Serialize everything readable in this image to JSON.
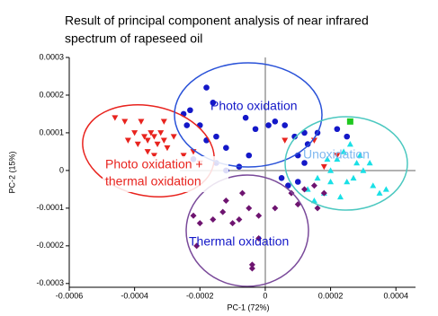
{
  "chart_data": {
    "type": "scatter",
    "title": [
      "Result of principal component analysis of near infrared",
      "spectrum of rapeseed oil"
    ],
    "x_label": "PC-1 (72%)",
    "y_label": "PC-2 (15%)",
    "xlim": [
      -0.0006,
      0.00046
    ],
    "ylim": [
      -0.00031,
      0.0003
    ],
    "xticks": [
      -0.0006,
      -0.0004,
      -0.0002,
      0,
      0.0002,
      0.0004
    ],
    "yticks": [
      -0.0003,
      -0.0002,
      -0.0001,
      0,
      0.0001,
      0.0002,
      0.0003
    ],
    "annotations": [
      "Photo oxidation",
      "Photo oxidation +",
      "thermal oxidation",
      "Unoxidation",
      "Thermal oxidation"
    ],
    "series": [
      {
        "color": "#e8231e",
        "marker": "triangle-down",
        "x": [
          -0.00046,
          -0.00043,
          -0.0004,
          -0.00038,
          -0.00037,
          -0.00036,
          -0.00035,
          -0.00034,
          -0.00033,
          -0.00032,
          -0.00031,
          -0.0003,
          -0.00042,
          -0.00039,
          -0.00036,
          -0.00034,
          -0.00028,
          -0.00025,
          -0.0002,
          -0.00022,
          6e-05,
          0.00015,
          0.00018,
          0.00022,
          -0.00031
        ],
        "values": [
          0.00014,
          0.00013,
          0.0001,
          0.00013,
          9e-05,
          8e-05,
          0.0001,
          9e-05,
          7e-05,
          0.0001,
          8e-05,
          6e-05,
          8e-05,
          7e-05,
          5e-05,
          4e-05,
          9e-05,
          4e-05,
          2e-05,
          5e-05,
          8e-05,
          8e-05,
          1e-05,
          4e-05,
          0.00013
        ]
      },
      {
        "color": "#1418c8",
        "marker": "circle",
        "x": [
          -0.00025,
          -0.00023,
          -0.00024,
          -0.0002,
          -0.00018,
          -0.00015,
          -0.00012,
          -0.00015,
          -0.00012,
          -8e-05,
          -5e-05,
          -0.00018,
          -0.00016,
          -6e-05,
          -3e-05,
          1e-05,
          3e-05,
          6e-05,
          9e-05,
          0.00012,
          0.00013,
          0.0001,
          0.00012,
          0.00016,
          0.00022,
          0.00025,
          5e-05,
          7e-05,
          0.0001,
          -0.00022
        ],
        "values": [
          0.00015,
          0.00016,
          0.00012,
          0.00012,
          8e-05,
          9e-05,
          6e-05,
          2e-05,
          0,
          1e-05,
          4e-05,
          0.00022,
          0.00018,
          0.00014,
          0.00011,
          0.00012,
          0.00013,
          0.00012,
          9e-05,
          0.0001,
          7e-05,
          4e-05,
          2e-05,
          0.0001,
          0.00011,
          9e-05,
          -2e-05,
          -4e-05,
          -3e-05,
          3e-05
        ]
      },
      {
        "color": "#19e0e6",
        "marker": "triangle-up",
        "x": [
          0.00013,
          0.00016,
          0.00018,
          0.0002,
          0.00022,
          0.00024,
          0.00026,
          0.00028,
          0.00025,
          0.00023,
          0.0003,
          0.00033,
          0.00035,
          0.00037,
          0.00029,
          0.00032,
          0.00019,
          0.0002,
          0.00015,
          0.00027
        ],
        "values": [
          -5e-05,
          -2e-05,
          -6e-05,
          0,
          3e-05,
          5e-05,
          7e-05,
          2e-05,
          -3e-05,
          -7e-05,
          0,
          -4e-05,
          -6e-05,
          -5e-05,
          4e-05,
          2e-05,
          3e-05,
          -3e-05,
          -8e-05,
          -2e-05
        ]
      },
      {
        "color": "#6e1470",
        "marker": "diamond",
        "x": [
          -0.00022,
          -0.0002,
          -0.00016,
          -0.00013,
          -0.0001,
          -8e-05,
          -5e-05,
          -2e-05,
          -0.00012,
          -7e-05,
          -4e-05,
          -4e-05,
          3e-05,
          8e-05,
          0.0001,
          0.00012,
          0.00015,
          0.00018,
          0.00016,
          -0.00021,
          -2e-05
        ],
        "values": [
          -0.00012,
          -0.00014,
          -0.00013,
          -0.00011,
          -0.00014,
          -0.00013,
          -0.0001,
          -0.00012,
          -8e-05,
          -6e-05,
          -0.00025,
          -0.00026,
          -0.0001,
          -6e-05,
          -9e-05,
          -5e-05,
          -4e-05,
          -6e-05,
          -0.0001,
          -0.0002,
          -0.00018
        ]
      },
      {
        "color": "#1fc81f",
        "marker": "square",
        "x": [
          0.00026
        ],
        "values": [
          0.00013
        ]
      }
    ]
  }
}
